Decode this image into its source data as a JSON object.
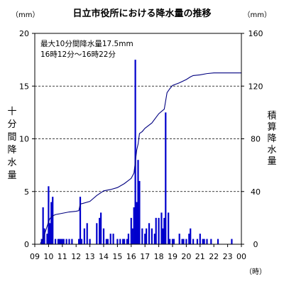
{
  "chart_data": {
    "type": "bar",
    "title": "日立市役所における降水量の推移",
    "annotation_lines": [
      "最大10分間降水量17.5mm",
      "16時12分～16時22分"
    ],
    "left_unit": "（mm）",
    "right_unit": "（mm）",
    "left_label_chars": [
      "十",
      "分",
      "間",
      "降",
      "水",
      "量"
    ],
    "right_label_chars": [
      "積",
      "算",
      "降",
      "水",
      "量"
    ],
    "x_unit": "（時）",
    "x_tick_labels": [
      "09",
      "10",
      "11",
      "12",
      "13",
      "14",
      "15",
      "16",
      "17",
      "18",
      "19",
      "20",
      "21",
      "22",
      "23",
      "00"
    ],
    "y_left": {
      "min": 0,
      "max": 20,
      "ticks": [
        0,
        5,
        10,
        15,
        20
      ]
    },
    "y_right": {
      "min": 0,
      "max": 160,
      "ticks": [
        0,
        40,
        80,
        120,
        160
      ]
    },
    "grid": "dashed-horizontal",
    "series": [
      {
        "kind": "bar",
        "axis": "left",
        "color": "#0000cc",
        "time_h": [
          9.5,
          9.6,
          9.7,
          9.9,
          10.0,
          10.1,
          10.2,
          10.3,
          10.5,
          10.7,
          10.8,
          10.9,
          11.0,
          11.1,
          11.3,
          11.5,
          11.7,
          12.2,
          12.3,
          12.4,
          12.6,
          12.8,
          13.0,
          13.5,
          13.7,
          13.8,
          14.0,
          14.2,
          14.3,
          14.5,
          14.7,
          15.0,
          15.2,
          15.4,
          15.5,
          15.7,
          15.8,
          16.0,
          16.1,
          16.2,
          16.3,
          16.4,
          16.5,
          16.6,
          16.8,
          17.0,
          17.1,
          17.3,
          17.5,
          17.7,
          17.8,
          18.0,
          18.2,
          18.3,
          18.4,
          18.5,
          18.7,
          18.8,
          19.0,
          19.1,
          19.5,
          19.7,
          19.8,
          20.0,
          20.2,
          20.3,
          20.5,
          20.8,
          21.0,
          21.2,
          21.3,
          21.5,
          21.8,
          22.3,
          23.3
        ],
        "values": [
          0.5,
          3.5,
          1.5,
          1.0,
          5.5,
          2.0,
          4.0,
          4.5,
          0.5,
          0.5,
          0.5,
          0.5,
          0.5,
          0.5,
          0.5,
          0.5,
          0.5,
          0.5,
          4.5,
          0.5,
          1.5,
          2.0,
          0.5,
          2.0,
          2.5,
          3.0,
          1.5,
          0.5,
          0.5,
          1.0,
          1.0,
          0.5,
          0.5,
          0.5,
          0.5,
          0.5,
          1.0,
          2.5,
          1.5,
          3.5,
          17.5,
          4.0,
          8.0,
          6.0,
          1.5,
          1.0,
          1.5,
          2.0,
          1.5,
          1.0,
          2.5,
          2.5,
          3.0,
          1.5,
          2.5,
          12.5,
          3.0,
          0.5,
          0.5,
          0.5,
          1.0,
          0.5,
          0.5,
          0.5,
          1.0,
          1.5,
          0.5,
          0.5,
          1.0,
          0.5,
          0.5,
          0.5,
          0.5,
          0.5,
          0.5
        ]
      },
      {
        "kind": "line",
        "axis": "right",
        "color": "#000080",
        "time_h": [
          9.4,
          9.6,
          10.0,
          10.1,
          10.3,
          10.5,
          11.0,
          11.5,
          12.0,
          12.2,
          12.3,
          12.5,
          13.0,
          13.5,
          14.0,
          14.5,
          15.0,
          15.5,
          16.0,
          16.2,
          16.4,
          16.5,
          16.6,
          16.8,
          17.0,
          17.5,
          18.0,
          18.4,
          18.6,
          18.8,
          19.0,
          19.5,
          20.0,
          20.3,
          20.5,
          21.0,
          21.5,
          22.0,
          23.0,
          24.0
        ],
        "values": [
          0.5,
          4.0,
          17.0,
          19.5,
          21.5,
          22.5,
          23.5,
          24.5,
          25.0,
          25.5,
          30.5,
          31.0,
          32.5,
          37.0,
          40.5,
          41.5,
          43.0,
          46.0,
          50.0,
          54.0,
          71.5,
          76.0,
          84.0,
          85.5,
          88.0,
          92.0,
          99.0,
          102.5,
          115.0,
          118.0,
          120.5,
          122.5,
          125.0,
          127.0,
          128.0,
          128.5,
          129.5,
          130.0,
          130.0,
          130.0
        ]
      }
    ]
  }
}
